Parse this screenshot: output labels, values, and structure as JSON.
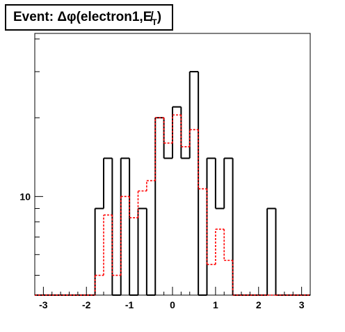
{
  "title": {
    "main": "Event: Δφ(electron1,",
    "met_symbol": "E̸",
    "met_sub": "T",
    "close": ")"
  },
  "chart_data": {
    "type": "histogram-step",
    "title": "Event: Δφ(electron1,E̸T)",
    "xlim": [
      -3.2,
      3.2
    ],
    "ylim_log": [
      4.2,
      42
    ],
    "log_y": true,
    "x_ticks": [
      "-3",
      "-2",
      "-1",
      "0",
      "1",
      "2",
      "3"
    ],
    "x_tick_values": [
      -3,
      -2,
      -1,
      0,
      1,
      2,
      3
    ],
    "y_tick_labels": [
      {
        "value": 10,
        "label": "10"
      }
    ],
    "bin_edges": [
      -3.2,
      -1.8,
      -1.6,
      -1.4,
      -1.2,
      -1.0,
      -0.8,
      -0.6,
      -0.4,
      -0.2,
      0.0,
      0.2,
      0.4,
      0.6,
      0.8,
      1.0,
      1.2,
      1.4,
      2.2,
      2.4,
      3.2
    ],
    "series": [
      {
        "color": "#000000",
        "style": "solid",
        "values": [
          4.2,
          9,
          14,
          4.2,
          14,
          4.2,
          9,
          4.2,
          20,
          14,
          22,
          14,
          30,
          4.2,
          14,
          9,
          14,
          4.2,
          9,
          4.2
        ]
      },
      {
        "color": "#ff0000",
        "style": "dotted",
        "values": [
          4.2,
          5,
          8.5,
          5,
          10,
          8.3,
          10.5,
          11.5,
          20,
          16,
          20.5,
          15.5,
          18,
          10.7,
          5.5,
          7.5,
          5.7,
          4.2,
          4.2,
          4.2
        ]
      }
    ]
  }
}
